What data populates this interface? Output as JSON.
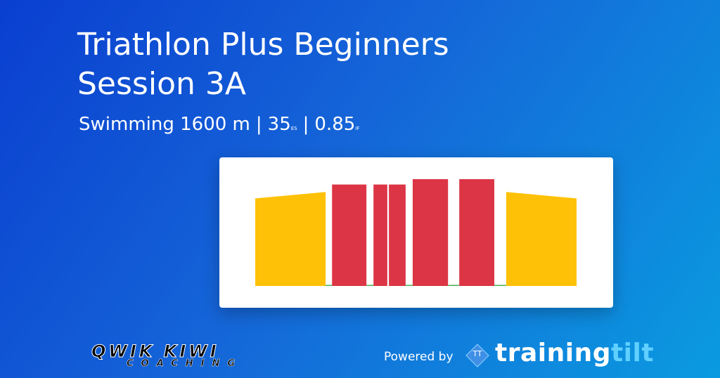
{
  "header": {
    "title_lines": [
      "Triathlon Plus Beginners",
      "Session 3A"
    ],
    "summary": [
      "Swimming 1600 m",
      "|",
      "35",
      "ES",
      "|",
      "0.85",
      "IF"
    ]
  },
  "workout_chart": {
    "type": "intensity-blocks",
    "xlim": [
      0,
      100
    ],
    "ylim": [
      0,
      1.0
    ],
    "segments": [
      {
        "x": [
          0,
          21.9
        ],
        "values": [
          0.82,
          0.88
        ],
        "color": "#ffc107"
      },
      {
        "x": [
          21.9,
          23.9
        ],
        "values": [
          0.01,
          0.01
        ],
        "color": "#4caf50"
      },
      {
        "x": [
          23.9,
          34.6
        ],
        "values": [
          0.95,
          0.95
        ],
        "color": "#dc3545"
      },
      {
        "x": [
          34.6,
          36.8
        ],
        "values": [
          0.01,
          0.01
        ],
        "color": "#4caf50"
      },
      {
        "x": [
          36.8,
          41.1
        ],
        "values": [
          0.95,
          0.95
        ],
        "color": "#dc3545"
      },
      {
        "x": [
          41.6,
          46.8
        ],
        "values": [
          0.95,
          0.95
        ],
        "color": "#dc3545"
      },
      {
        "x": [
          46.8,
          49.0
        ],
        "values": [
          0.01,
          0.01
        ],
        "color": "#4caf50"
      },
      {
        "x": [
          49.0,
          60.0
        ],
        "values": [
          1.0,
          1.0
        ],
        "color": "#dc3545"
      },
      {
        "x": [
          60.0,
          63.5
        ],
        "values": [
          0.01,
          0.01
        ],
        "color": "#4caf50"
      },
      {
        "x": [
          63.5,
          74.4
        ],
        "values": [
          1.0,
          1.0
        ],
        "color": "#dc3545"
      },
      {
        "x": [
          74.4,
          78.1
        ],
        "values": [
          0.01,
          0.01
        ],
        "color": "#4caf50"
      },
      {
        "x": [
          78.1,
          100
        ],
        "values": [
          0.88,
          0.82
        ],
        "color": "#ffc107"
      }
    ]
  },
  "footer": {
    "logo_name": "QWIK KIWI",
    "logo_tagline": "COACHING",
    "powered_by": "Powered by",
    "brand_icon": "TT",
    "brand": [
      "training",
      "tilt"
    ]
  }
}
